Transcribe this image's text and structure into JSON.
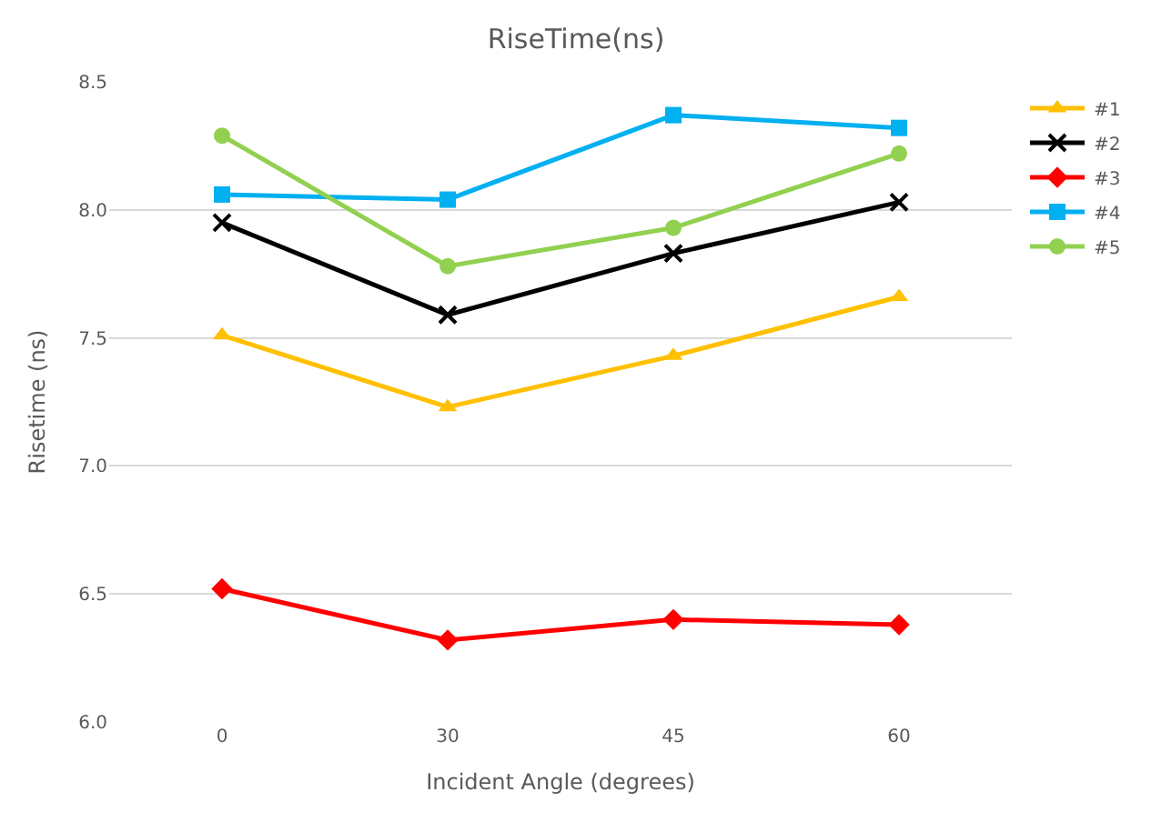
{
  "chart_data": {
    "type": "line",
    "title": "RiseTime(ns)",
    "xlabel": "Incident Angle (degrees)",
    "ylabel": "Risetime (ns)",
    "categories": [
      "0",
      "30",
      "45",
      "60"
    ],
    "series": [
      {
        "name": "#1",
        "color": "#ffc000",
        "marker": "triangle",
        "values": [
          7.51,
          7.23,
          7.43,
          7.66
        ]
      },
      {
        "name": "#2",
        "color": "#000000",
        "marker": "cross",
        "values": [
          7.95,
          7.59,
          7.83,
          8.03
        ]
      },
      {
        "name": "#3",
        "color": "#ff0000",
        "marker": "diamond",
        "values": [
          6.52,
          6.32,
          6.4,
          6.38
        ]
      },
      {
        "name": "#4",
        "color": "#00b0f0",
        "marker": "square",
        "values": [
          8.06,
          8.04,
          8.37,
          8.32
        ]
      },
      {
        "name": "#5",
        "color": "#92d050",
        "marker": "circle",
        "values": [
          8.29,
          7.78,
          7.93,
          8.22
        ]
      }
    ],
    "ylim": [
      6.0,
      8.5
    ],
    "yticks": [
      {
        "value": 6.0,
        "label": "6.0"
      },
      {
        "value": 6.5,
        "label": "6.5"
      },
      {
        "value": 7.0,
        "label": "7.0"
      },
      {
        "value": 7.5,
        "label": "7.5"
      },
      {
        "value": 8.0,
        "label": "8.0"
      },
      {
        "value": 8.5,
        "label": "8.5"
      }
    ],
    "grid": "y",
    "legend": "right",
    "line_style": "solid"
  }
}
